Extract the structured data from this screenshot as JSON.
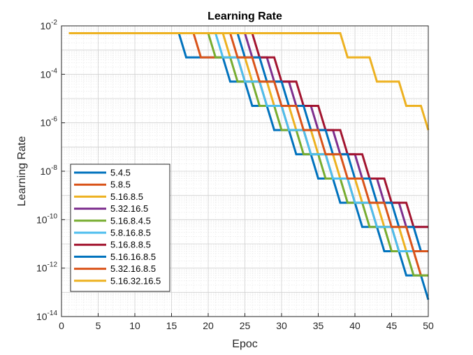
{
  "chart_data": {
    "type": "line",
    "title": "Learning Rate",
    "xlabel": "Epoc",
    "ylabel": "Learning Rate",
    "xlim": [
      0,
      50
    ],
    "ylim": [
      1e-14,
      0.01
    ],
    "yscale": "log",
    "grid": true,
    "minor_grid": true,
    "legend_position": "bottom-left",
    "x_ticks": [
      "0",
      "5",
      "10",
      "15",
      "20",
      "25",
      "30",
      "35",
      "40",
      "45",
      "50"
    ],
    "y_ticks": [
      {
        "value": 1e-14,
        "base": "10",
        "exp": "-14"
      },
      {
        "value": 1e-12,
        "base": "10",
        "exp": "-12"
      },
      {
        "value": 1e-10,
        "base": "10",
        "exp": "-10"
      },
      {
        "value": 1e-08,
        "base": "10",
        "exp": "-8"
      },
      {
        "value": 1e-06,
        "base": "10",
        "exp": "-6"
      },
      {
        "value": 0.0001,
        "base": "10",
        "exp": "-4"
      },
      {
        "value": 0.01,
        "base": "10",
        "exp": "-2"
      }
    ],
    "series": [
      {
        "name": "5.4.5",
        "color": "#0072bd",
        "x": [
          1,
          16,
          17,
          22,
          23,
          25,
          26,
          28,
          29,
          31,
          32,
          34,
          35,
          37,
          38,
          40,
          41,
          43,
          44,
          46,
          47,
          49,
          50
        ],
        "y": [
          0.005,
          0.005,
          0.0005,
          0.0005,
          5e-05,
          5e-05,
          5e-06,
          5e-06,
          5e-07,
          5e-07,
          5e-08,
          5e-08,
          5e-09,
          5e-09,
          5e-10,
          5e-10,
          5e-11,
          5e-11,
          5e-12,
          5e-12,
          5e-13,
          5e-13,
          5e-14
        ]
      },
      {
        "name": "5.8.5",
        "color": "#d95319",
        "x": [
          1,
          18,
          19,
          24,
          25,
          27,
          28,
          30,
          31,
          33,
          34,
          36,
          37,
          39,
          40,
          42,
          43,
          45,
          46,
          48,
          49,
          50
        ],
        "y": [
          0.005,
          0.005,
          0.0005,
          0.0005,
          5e-05,
          5e-05,
          5e-06,
          5e-06,
          5e-07,
          5e-07,
          5e-08,
          5e-08,
          5e-09,
          5e-09,
          5e-10,
          5e-10,
          5e-11,
          5e-11,
          5e-12,
          5e-12,
          5e-13,
          5e-13
        ]
      },
      {
        "name": "5.16.8.5",
        "color": "#edb120",
        "x": [
          1,
          22,
          23,
          25,
          26,
          28,
          29,
          31,
          32,
          34,
          35,
          37,
          38,
          40,
          41,
          43,
          44,
          46,
          47,
          49,
          50
        ],
        "y": [
          0.005,
          0.005,
          0.0005,
          0.0005,
          5e-05,
          5e-05,
          5e-06,
          5e-06,
          5e-07,
          5e-07,
          5e-08,
          5e-08,
          5e-09,
          5e-09,
          5e-10,
          5e-10,
          5e-11,
          5e-11,
          5e-12,
          5e-12,
          5e-12
        ]
      },
      {
        "name": "5.32.16.5",
        "color": "#7e2f8e",
        "x": [
          1,
          25,
          26,
          28,
          29,
          31,
          32,
          34,
          35,
          37,
          38,
          40,
          41,
          43,
          44,
          46,
          47,
          49,
          50
        ],
        "y": [
          0.005,
          0.005,
          0.0005,
          0.0005,
          5e-05,
          5e-05,
          5e-06,
          5e-06,
          5e-07,
          5e-07,
          5e-08,
          5e-08,
          5e-09,
          5e-09,
          5e-10,
          5e-10,
          5e-11,
          5e-11,
          5e-11
        ]
      },
      {
        "name": "5.16.8.4.5",
        "color": "#77ac30",
        "x": [
          1,
          20,
          21,
          23,
          24,
          26,
          27,
          29,
          30,
          32,
          33,
          35,
          36,
          38,
          39,
          41,
          42,
          44,
          45,
          47,
          48,
          50
        ],
        "y": [
          0.005,
          0.005,
          0.0005,
          0.0005,
          5e-05,
          5e-05,
          5e-06,
          5e-06,
          5e-07,
          5e-07,
          5e-08,
          5e-08,
          5e-09,
          5e-09,
          5e-10,
          5e-10,
          5e-11,
          5e-11,
          5e-12,
          5e-12,
          5e-13,
          5e-13
        ]
      },
      {
        "name": "5.8.16.8.5",
        "color": "#4dbeee",
        "x": [
          1,
          21,
          22,
          24,
          25,
          27,
          28,
          30,
          31,
          33,
          34,
          36,
          37,
          39,
          40,
          42,
          43,
          45,
          46,
          48,
          49,
          50
        ],
        "y": [
          0.005,
          0.005,
          0.0005,
          0.0005,
          5e-05,
          5e-05,
          5e-06,
          5e-06,
          5e-07,
          5e-07,
          5e-08,
          5e-08,
          5e-09,
          5e-09,
          5e-10,
          5e-10,
          5e-11,
          5e-11,
          5e-12,
          5e-12,
          5e-12,
          5e-12
        ]
      },
      {
        "name": "5.16.8.8.5",
        "color": "#a2142f",
        "x": [
          1,
          26,
          27,
          29,
          30,
          32,
          33,
          35,
          36,
          38,
          39,
          41,
          42,
          44,
          45,
          47,
          48,
          50
        ],
        "y": [
          0.005,
          0.005,
          0.0005,
          0.0005,
          5e-05,
          5e-05,
          5e-06,
          5e-06,
          5e-07,
          5e-07,
          5e-08,
          5e-08,
          5e-09,
          5e-09,
          5e-10,
          5e-10,
          5e-11,
          5e-11
        ]
      },
      {
        "name": "5.16.16.8.5",
        "color": "#0072bd",
        "x": [
          1,
          24,
          25,
          27,
          28,
          30,
          31,
          33,
          34,
          36,
          37,
          39,
          40,
          42,
          43,
          45,
          46,
          48,
          49,
          50
        ],
        "y": [
          0.005,
          0.005,
          0.0005,
          0.0005,
          5e-05,
          5e-05,
          5e-06,
          5e-06,
          5e-07,
          5e-07,
          5e-08,
          5e-08,
          5e-09,
          5e-09,
          5e-10,
          5e-10,
          5e-11,
          5e-11,
          5e-12,
          5e-12
        ]
      },
      {
        "name": "5.32.16.8.5",
        "color": "#d95319",
        "x": [
          1,
          23,
          24,
          26,
          27,
          29,
          30,
          32,
          33,
          35,
          36,
          38,
          39,
          41,
          42,
          44,
          45,
          47,
          48,
          50
        ],
        "y": [
          0.005,
          0.005,
          0.0005,
          0.0005,
          5e-05,
          5e-05,
          5e-06,
          5e-06,
          5e-07,
          5e-07,
          5e-08,
          5e-08,
          5e-09,
          5e-09,
          5e-10,
          5e-10,
          5e-11,
          5e-11,
          5e-12,
          5e-12
        ]
      },
      {
        "name": "5.16.32.16.5",
        "color": "#edb120",
        "x": [
          1,
          38,
          39,
          42,
          43,
          46,
          47,
          49,
          50
        ],
        "y": [
          0.005,
          0.005,
          0.0005,
          0.0005,
          5e-05,
          5e-05,
          5e-06,
          5e-06,
          5e-07
        ]
      }
    ]
  }
}
